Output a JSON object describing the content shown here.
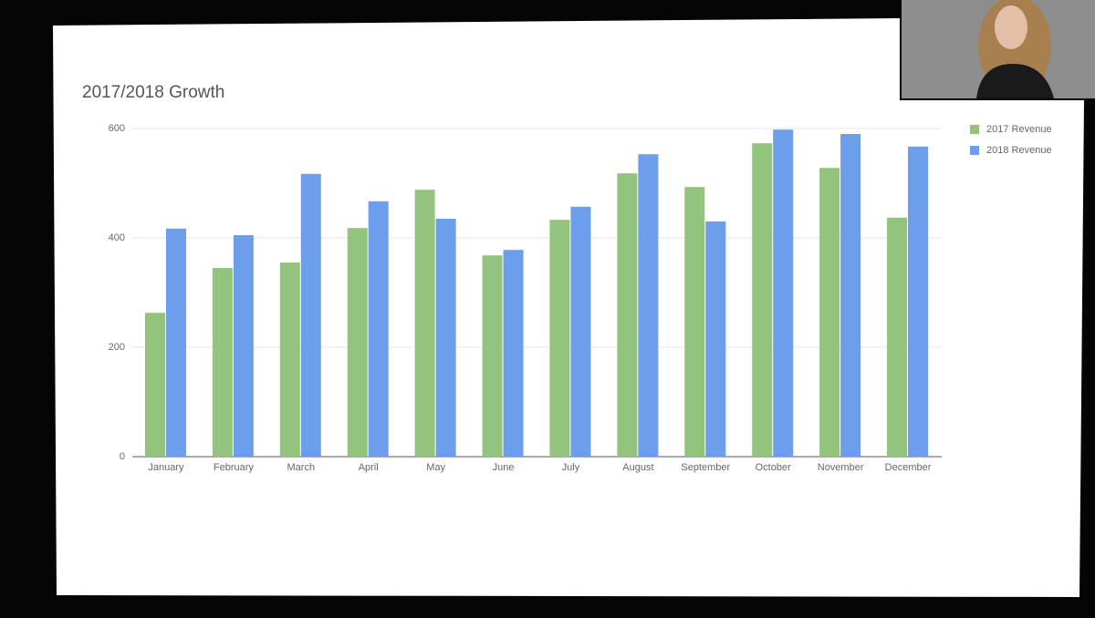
{
  "chart_data": {
    "type": "bar",
    "title": "2017/2018 Growth",
    "categories": [
      "January",
      "February",
      "March",
      "April",
      "May",
      "June",
      "July",
      "August",
      "September",
      "October",
      "November",
      "December"
    ],
    "series": [
      {
        "name": "2017 Revenue",
        "color": "#93c47d",
        "values": [
          263,
          345,
          355,
          418,
          488,
          368,
          433,
          518,
          493,
          573,
          528,
          437
        ]
      },
      {
        "name": "2018 Revenue",
        "color": "#6d9eeb",
        "values": [
          417,
          405,
          517,
          467,
          435,
          378,
          457,
          553,
          430,
          598,
          590,
          567
        ]
      }
    ],
    "ylim": [
      0,
      600
    ],
    "yticks": [
      0,
      200,
      400,
      600
    ],
    "grid": true,
    "legend": "right"
  }
}
